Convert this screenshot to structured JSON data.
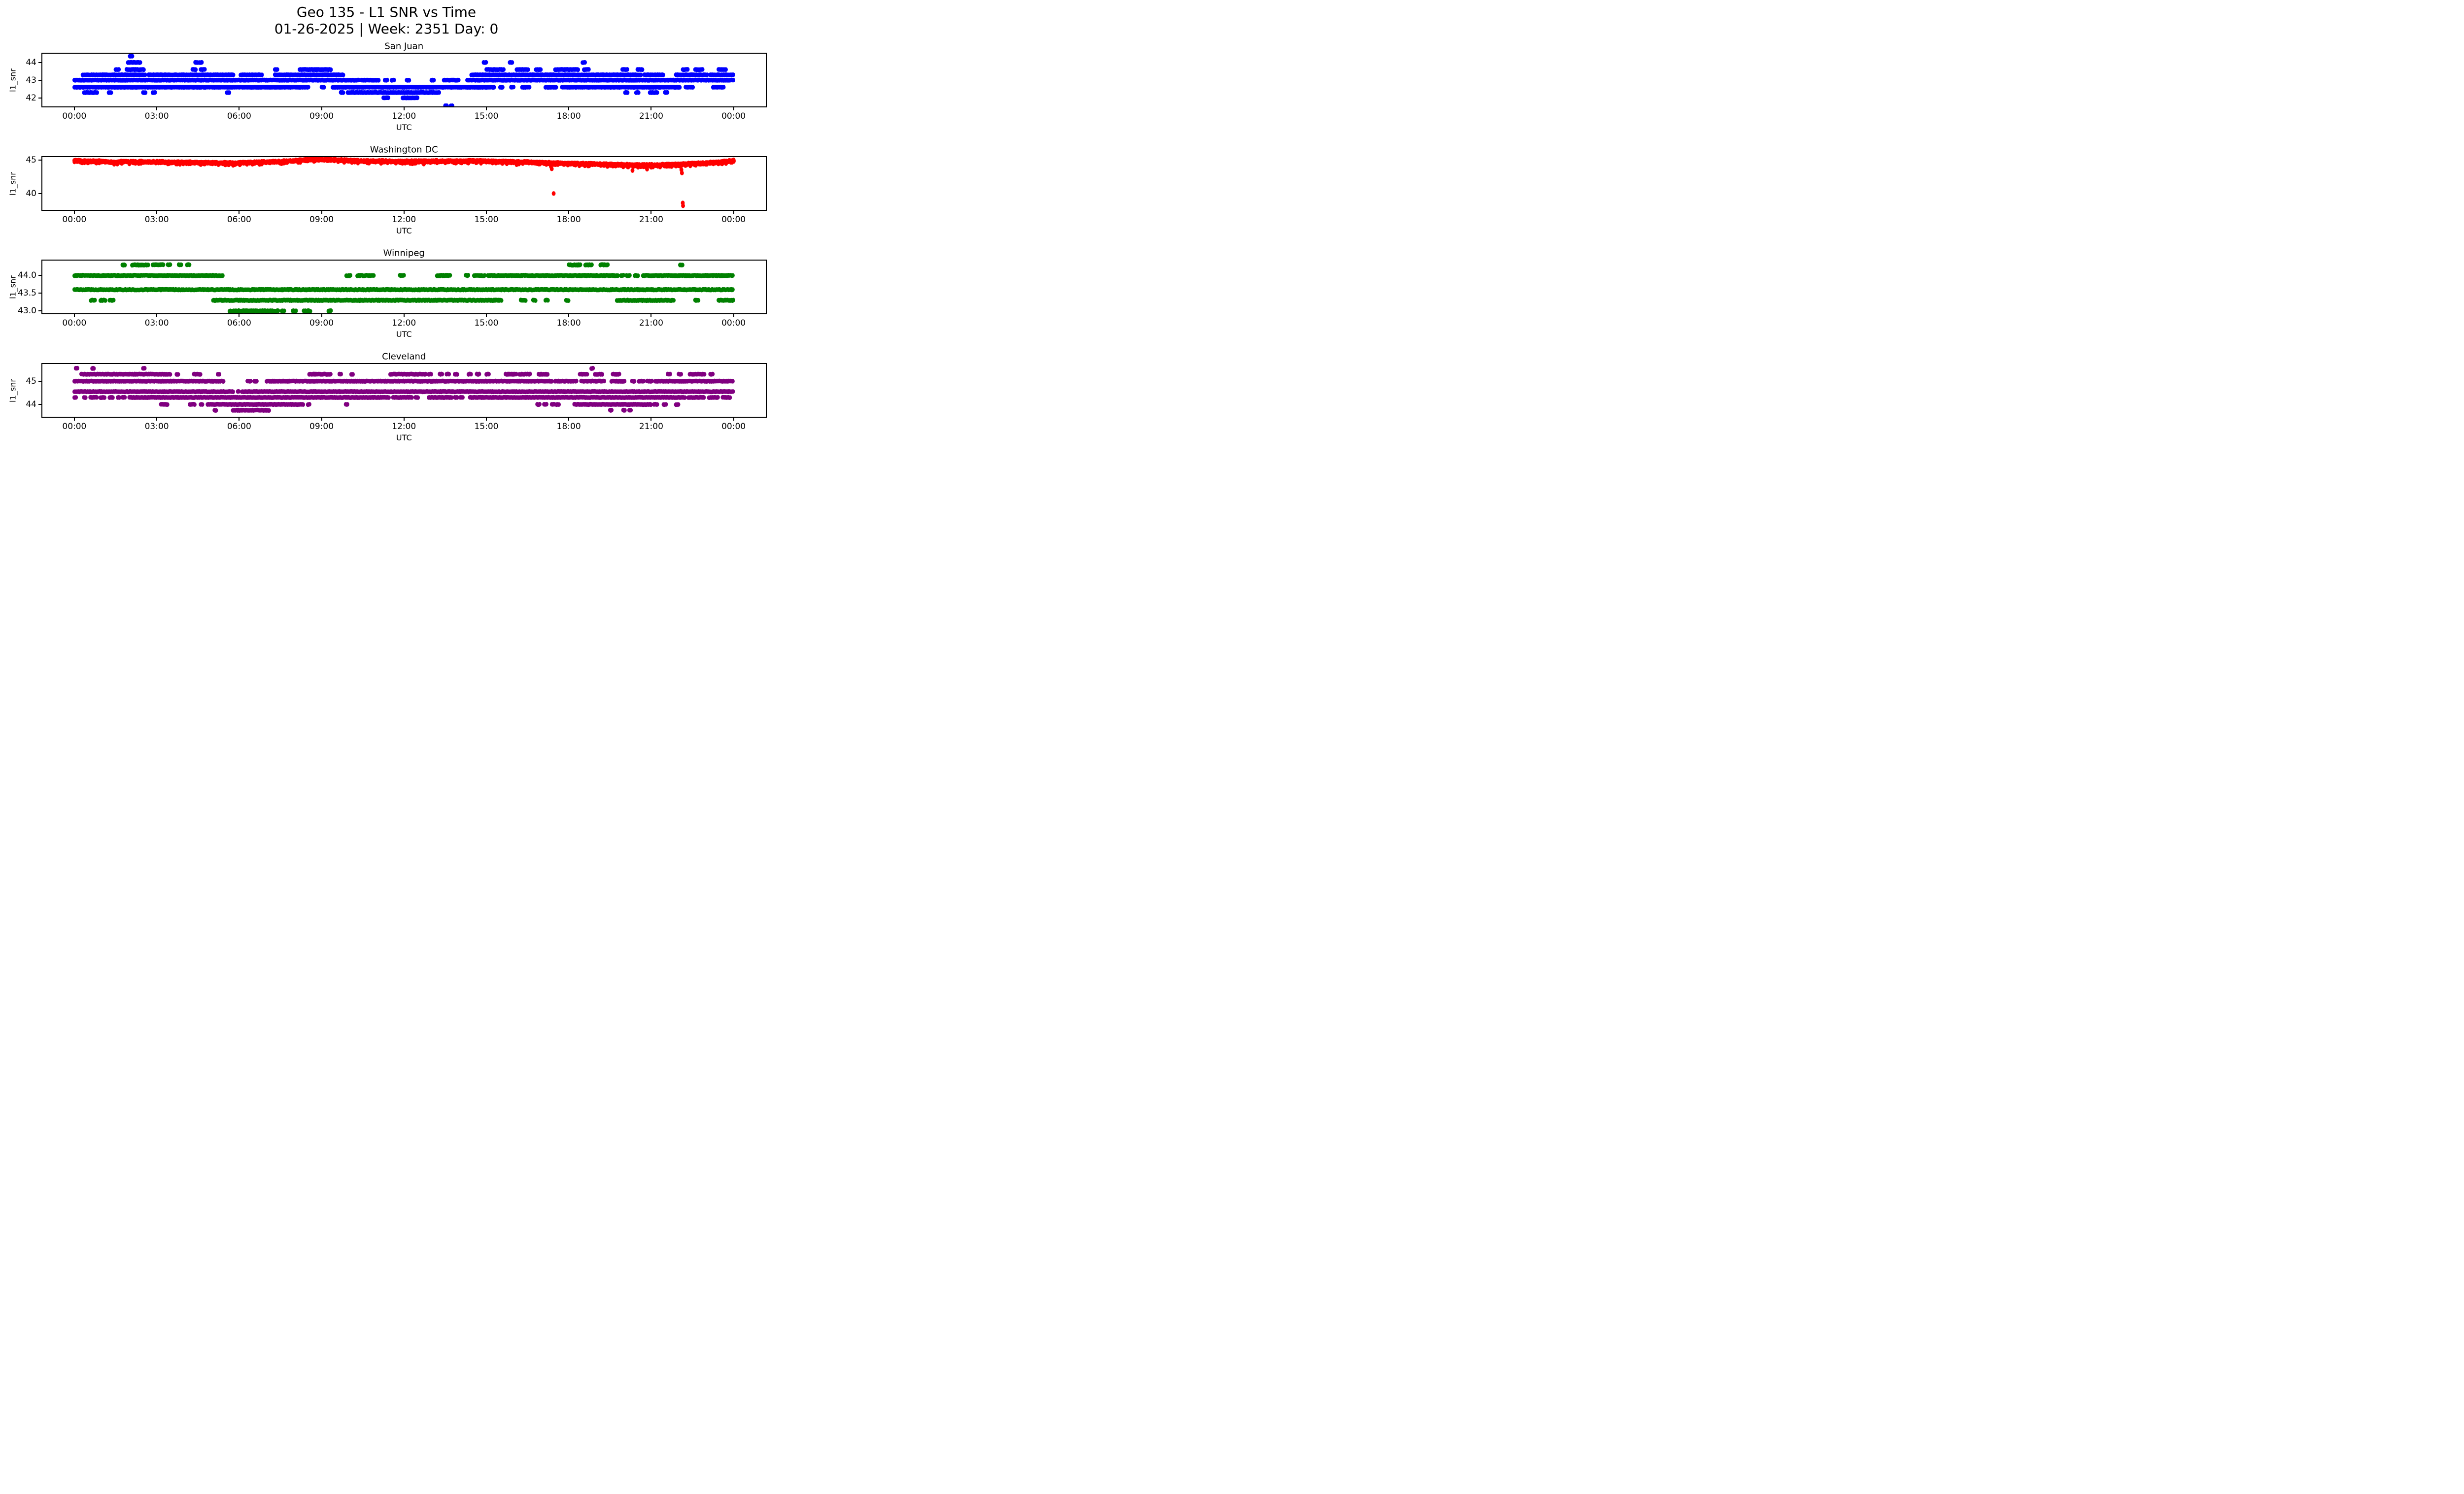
{
  "figure": {
    "title_line1": "Geo 135 - L1 SNR vs Time",
    "title_line2": "01-26-2025 | Week: 2351 Day: 0"
  },
  "axes_common": {
    "xlabel": "UTC",
    "ylabel": "l1_snr",
    "xlim": [
      -1.2,
      25.2
    ],
    "xtick_hours": [
      0,
      3,
      6,
      9,
      12,
      15,
      18,
      21,
      24
    ],
    "xtick_labels": [
      "00:00",
      "03:00",
      "06:00",
      "09:00",
      "12:00",
      "15:00",
      "18:00",
      "21:00",
      "00:00"
    ]
  },
  "chart_data": [
    {
      "type": "scatter",
      "title": "San Juan",
      "color": "#0000ff",
      "ylim": [
        41.45,
        44.55
      ],
      "ytick_values": [
        42,
        43,
        44
      ],
      "ytick_labels": [
        "42",
        "43",
        "44"
      ],
      "bands": [
        {
          "y": 44.35,
          "segments": [
            [
              2.02,
              2.12
            ]
          ]
        },
        {
          "y": 44.0,
          "segments": [
            [
              1.95,
              2.4
            ],
            [
              4.4,
              4.5
            ],
            [
              4.55,
              4.65
            ],
            [
              14.9,
              15.0
            ],
            [
              15.85,
              15.95
            ],
            [
              18.5,
              18.6
            ]
          ]
        },
        {
          "y": 43.6,
          "segments": [
            [
              1.5,
              1.62
            ],
            [
              1.9,
              2.55
            ],
            [
              4.3,
              4.45
            ],
            [
              4.6,
              4.78
            ],
            [
              7.3,
              7.4
            ],
            [
              8.2,
              9.35
            ],
            [
              15.0,
              15.65
            ],
            [
              16.1,
              16.55
            ],
            [
              16.8,
              17.0
            ],
            [
              17.5,
              18.35
            ],
            [
              18.55,
              18.75
            ],
            [
              19.95,
              20.15
            ],
            [
              20.5,
              20.7
            ],
            [
              22.15,
              22.35
            ],
            [
              22.6,
              22.9
            ],
            [
              23.45,
              23.75
            ]
          ]
        },
        {
          "y": 43.3,
          "segments": [
            [
              0.3,
              2.6
            ],
            [
              2.7,
              5.8
            ],
            [
              6.05,
              6.85
            ],
            [
              7.3,
              9.8
            ],
            [
              14.45,
              20.65
            ],
            [
              20.75,
              21.45
            ],
            [
              21.9,
              23.05
            ],
            [
              23.15,
              24.0
            ]
          ]
        },
        {
          "y": 43.0,
          "segments": [
            [
              0.0,
              10.35
            ],
            [
              10.45,
              11.1
            ],
            [
              11.3,
              11.4
            ],
            [
              11.55,
              11.65
            ],
            [
              12.1,
              12.2
            ],
            [
              13.0,
              13.1
            ],
            [
              13.45,
              14.0
            ],
            [
              14.3,
              24.0
            ]
          ]
        },
        {
          "y": 42.6,
          "segments": [
            [
              0.0,
              8.55
            ],
            [
              9.0,
              9.1
            ],
            [
              9.4,
              15.3
            ],
            [
              15.5,
              15.6
            ],
            [
              15.9,
              16.0
            ],
            [
              16.3,
              16.6
            ],
            [
              17.15,
              17.55
            ],
            [
              17.75,
              22.05
            ],
            [
              22.25,
              22.55
            ],
            [
              23.25,
              23.65
            ]
          ]
        },
        {
          "y": 42.3,
          "segments": [
            [
              0.35,
              0.85
            ],
            [
              1.25,
              1.35
            ],
            [
              2.5,
              2.6
            ],
            [
              2.85,
              2.95
            ],
            [
              5.55,
              5.65
            ],
            [
              9.7,
              9.8
            ],
            [
              9.95,
              13.3
            ],
            [
              20.05,
              20.15
            ],
            [
              20.45,
              20.55
            ],
            [
              20.95,
              21.25
            ],
            [
              21.5,
              21.6
            ]
          ]
        },
        {
          "y": 42.0,
          "segments": [
            [
              11.25,
              11.45
            ],
            [
              11.95,
              12.5
            ]
          ]
        },
        {
          "y": 41.55,
          "segments": [
            [
              13.5,
              13.57
            ],
            [
              13.7,
              13.77
            ]
          ]
        }
      ]
    },
    {
      "type": "scatter",
      "title": "Washington DC",
      "color": "#ff0000",
      "ylim": [
        37.4,
        45.55
      ],
      "ytick_values": [
        40,
        45
      ],
      "ytick_labels": [
        "40",
        "45"
      ],
      "noisy_band": {
        "jitter": 0.13,
        "profile": [
          [
            0,
            44.85
          ],
          [
            0.5,
            44.8
          ],
          [
            1.0,
            44.78
          ],
          [
            1.4,
            44.62
          ],
          [
            1.8,
            44.72
          ],
          [
            2.5,
            44.7
          ],
          [
            3.5,
            44.65
          ],
          [
            4.3,
            44.62
          ],
          [
            5.0,
            44.55
          ],
          [
            5.8,
            44.5
          ],
          [
            6.5,
            44.62
          ],
          [
            7.3,
            44.7
          ],
          [
            7.9,
            44.82
          ],
          [
            8.4,
            45.0
          ],
          [
            9.0,
            45.05
          ],
          [
            9.6,
            44.98
          ],
          [
            10.2,
            44.85
          ],
          [
            11.0,
            44.8
          ],
          [
            12.0,
            44.76
          ],
          [
            13.0,
            44.8
          ],
          [
            14.0,
            44.82
          ],
          [
            15.0,
            44.78
          ],
          [
            16.0,
            44.7
          ],
          [
            16.8,
            44.62
          ],
          [
            17.5,
            44.5
          ],
          [
            18.2,
            44.45
          ],
          [
            19.0,
            44.35
          ],
          [
            19.8,
            44.28
          ],
          [
            20.5,
            44.2
          ],
          [
            21.2,
            44.22
          ],
          [
            21.8,
            44.3
          ],
          [
            22.4,
            44.42
          ],
          [
            23.0,
            44.52
          ],
          [
            23.4,
            44.65
          ],
          [
            23.8,
            44.8
          ],
          [
            24.0,
            44.88
          ]
        ]
      },
      "spikes": [
        [
          1.45,
          44.35
        ],
        [
          5.78,
          44.18
        ],
        [
          8.6,
          45.18
        ],
        [
          9.0,
          45.22
        ],
        [
          9.3,
          45.2
        ],
        [
          12.3,
          44.42
        ],
        [
          12.72,
          44.38
        ],
        [
          16.1,
          44.28
        ],
        [
          17.35,
          44.02
        ],
        [
          17.38,
          43.66
        ],
        [
          17.45,
          40.0
        ],
        [
          20.32,
          43.42
        ],
        [
          20.85,
          43.62
        ],
        [
          21.0,
          43.9
        ],
        [
          22.1,
          43.52
        ],
        [
          22.12,
          43.05
        ],
        [
          22.15,
          38.6
        ],
        [
          22.16,
          38.18
        ]
      ]
    },
    {
      "type": "scatter",
      "title": "Winnipeg",
      "color": "#008000",
      "ylim": [
        42.9,
        44.45
      ],
      "ytick_values": [
        43.0,
        43.5,
        44.0
      ],
      "ytick_labels": [
        "43.0",
        "43.5",
        "44.0"
      ],
      "bands": [
        {
          "y": 44.3,
          "segments": [
            [
              1.75,
              1.85
            ],
            [
              2.1,
              2.55
            ],
            [
              2.6,
              2.7
            ],
            [
              2.85,
              3.25
            ],
            [
              3.4,
              3.5
            ],
            [
              3.8,
              3.9
            ],
            [
              4.1,
              4.2
            ],
            [
              18.0,
              18.45
            ],
            [
              18.6,
              18.85
            ],
            [
              19.15,
              19.45
            ],
            [
              22.05,
              22.15
            ]
          ]
        },
        {
          "y": 44.0,
          "segments": [
            [
              0.0,
              5.4
            ],
            [
              9.9,
              10.05
            ],
            [
              10.3,
              10.9
            ],
            [
              11.85,
              12.0
            ],
            [
              13.2,
              13.7
            ],
            [
              14.25,
              14.35
            ],
            [
              14.55,
              14.95
            ],
            [
              15.05,
              19.8
            ],
            [
              19.9,
              20.0
            ],
            [
              20.1,
              20.25
            ],
            [
              20.4,
              20.55
            ],
            [
              20.7,
              24.0
            ]
          ]
        },
        {
          "y": 43.6,
          "segments": [
            [
              0.0,
              24.0
            ]
          ]
        },
        {
          "y": 43.3,
          "segments": [
            [
              0.6,
              0.78
            ],
            [
              0.95,
              1.15
            ],
            [
              1.28,
              1.45
            ],
            [
              5.05,
              15.55
            ],
            [
              16.25,
              16.45
            ],
            [
              16.7,
              16.8
            ],
            [
              17.15,
              17.25
            ],
            [
              17.9,
              18.0
            ],
            [
              19.75,
              21.85
            ],
            [
              22.6,
              22.75
            ],
            [
              23.45,
              24.0
            ]
          ]
        },
        {
          "y": 43.0,
          "segments": [
            [
              5.65,
              7.45
            ],
            [
              7.55,
              7.65
            ],
            [
              7.95,
              8.08
            ],
            [
              8.35,
              8.6
            ],
            [
              9.25,
              9.35
            ]
          ]
        }
      ]
    },
    {
      "type": "scatter",
      "title": "Cleveland",
      "color": "#800080",
      "ylim": [
        43.42,
        45.78
      ],
      "ytick_values": [
        44,
        45
      ],
      "ytick_labels": [
        "44",
        "45"
      ],
      "bands": [
        {
          "y": 45.55,
          "segments": [
            [
              0.05,
              0.12
            ],
            [
              0.65,
              0.72
            ],
            [
              2.5,
              2.58
            ],
            [
              18.82,
              18.9
            ]
          ]
        },
        {
          "y": 45.3,
          "segments": [
            [
              0.25,
              3.5
            ],
            [
              3.72,
              3.8
            ],
            [
              4.35,
              4.6
            ],
            [
              5.22,
              5.3
            ],
            [
              8.55,
              9.35
            ],
            [
              9.65,
              9.72
            ],
            [
              10.08,
              10.16
            ],
            [
              11.5,
              12.8
            ],
            [
              12.9,
              13.0
            ],
            [
              13.3,
              13.4
            ],
            [
              13.55,
              13.65
            ],
            [
              13.85,
              13.95
            ],
            [
              14.35,
              14.45
            ],
            [
              14.65,
              14.75
            ],
            [
              15.0,
              15.1
            ],
            [
              15.7,
              16.1
            ],
            [
              16.2,
              16.6
            ],
            [
              16.9,
              17.25
            ],
            [
              18.4,
              18.7
            ],
            [
              18.95,
              19.25
            ],
            [
              19.6,
              19.85
            ],
            [
              21.6,
              21.7
            ],
            [
              22.0,
              22.1
            ],
            [
              22.4,
              22.95
            ],
            [
              23.15,
              23.25
            ]
          ]
        },
        {
          "y": 45.0,
          "segments": [
            [
              0.0,
              5.45
            ],
            [
              6.3,
              6.45
            ],
            [
              6.55,
              6.65
            ],
            [
              7.0,
              17.4
            ],
            [
              17.5,
              18.3
            ],
            [
              18.45,
              19.3
            ],
            [
              19.55,
              20.05
            ],
            [
              20.3,
              20.4
            ],
            [
              20.55,
              20.75
            ],
            [
              20.85,
              21.05
            ],
            [
              21.15,
              24.0
            ]
          ]
        },
        {
          "y": 44.55,
          "segments": [
            [
              0.0,
              5.7
            ],
            [
              5.72,
              5.78
            ],
            [
              5.95,
              6.0
            ],
            [
              6.1,
              24.0
            ]
          ]
        },
        {
          "y": 44.3,
          "segments": [
            [
              0.0,
              0.06
            ],
            [
              0.35,
              0.42
            ],
            [
              0.58,
              0.85
            ],
            [
              0.95,
              1.1
            ],
            [
              1.28,
              1.42
            ],
            [
              1.58,
              1.65
            ],
            [
              1.75,
              1.85
            ],
            [
              2.0,
              11.45
            ],
            [
              11.6,
              12.3
            ],
            [
              12.42,
              12.52
            ],
            [
              12.9,
              13.75
            ],
            [
              13.85,
              13.95
            ],
            [
              14.05,
              14.15
            ],
            [
              14.4,
              22.25
            ],
            [
              22.35,
              22.95
            ],
            [
              23.1,
              23.45
            ],
            [
              23.6,
              23.9
            ]
          ]
        },
        {
          "y": 44.0,
          "segments": [
            [
              3.15,
              3.4
            ],
            [
              4.2,
              4.4
            ],
            [
              4.6,
              4.68
            ],
            [
              4.85,
              8.35
            ],
            [
              8.5,
              8.58
            ],
            [
              9.88,
              9.96
            ],
            [
              16.85,
              16.95
            ],
            [
              17.1,
              17.2
            ],
            [
              17.38,
              17.5
            ],
            [
              17.55,
              17.65
            ],
            [
              18.2,
              21.0
            ],
            [
              21.1,
              21.25
            ],
            [
              21.45,
              21.55
            ],
            [
              21.9,
              22.0
            ]
          ]
        },
        {
          "y": 43.75,
          "segments": [
            [
              5.1,
              5.17
            ],
            [
              5.77,
              7.1
            ],
            [
              19.5,
              19.58
            ],
            [
              19.98,
              20.06
            ],
            [
              20.2,
              20.28
            ]
          ]
        }
      ]
    }
  ]
}
